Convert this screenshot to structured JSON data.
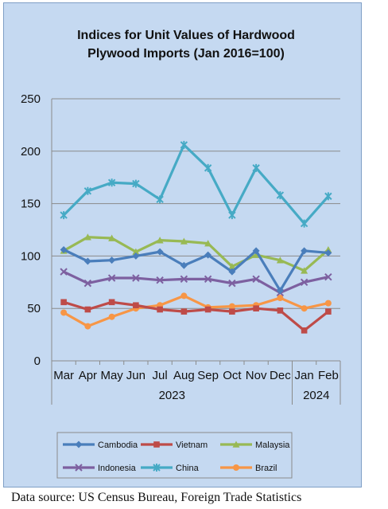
{
  "colors": {
    "Cambodia": "#4a7ebb",
    "Vietnam": "#be4b48",
    "Malaysia": "#98b954",
    "Indonesia": "#7d60a0",
    "China": "#46aac5",
    "Brazil": "#f79646"
  },
  "chart_data": {
    "type": "line",
    "title_lines": [
      "Indices for Unit Values of Hardwood",
      "Plywood Imports (Jan 2016=100)"
    ],
    "categories": [
      "Mar",
      "Apr",
      "May",
      "Jun",
      "Jul",
      "Aug",
      "Sep",
      "Oct",
      "Nov",
      "Dec",
      "Jan",
      "Feb"
    ],
    "year_groups": [
      {
        "label": "2023",
        "from": 0,
        "to": 9
      },
      {
        "label": "2024",
        "from": 10,
        "to": 11
      }
    ],
    "ylim": [
      0,
      250
    ],
    "yticks": [
      0,
      50,
      100,
      150,
      200,
      250
    ],
    "grid": true,
    "legend_position": "bottom",
    "series": [
      {
        "name": "Cambodia",
        "marker": "diamond",
        "values": [
          106,
          95,
          96,
          100,
          104,
          91,
          101,
          85,
          105,
          67,
          105,
          103
        ]
      },
      {
        "name": "Vietnam",
        "marker": "square",
        "values": [
          56,
          49,
          56,
          53,
          49,
          47,
          49,
          47,
          50,
          48,
          29,
          47
        ]
      },
      {
        "name": "Malaysia",
        "marker": "triangle",
        "values": [
          105,
          118,
          117,
          104,
          115,
          114,
          112,
          90,
          101,
          96,
          86,
          106
        ]
      },
      {
        "name": "Indonesia",
        "marker": "x",
        "values": [
          85,
          74,
          79,
          79,
          77,
          78,
          78,
          74,
          78,
          65,
          75,
          80
        ]
      },
      {
        "name": "China",
        "marker": "star",
        "values": [
          139,
          162,
          170,
          169,
          154,
          206,
          184,
          139,
          184,
          158,
          131,
          157
        ]
      },
      {
        "name": "Brazil",
        "marker": "circle",
        "values": [
          46,
          33,
          42,
          50,
          53,
          62,
          51,
          52,
          53,
          60,
          50,
          55
        ]
      }
    ]
  },
  "legend": {
    "items": [
      "Cambodia",
      "Vietnam",
      "Malaysia",
      "Indonesia",
      "China",
      "Brazil"
    ]
  },
  "source_note": "Data source: US Census Bureau, Foreign Trade Statistics"
}
